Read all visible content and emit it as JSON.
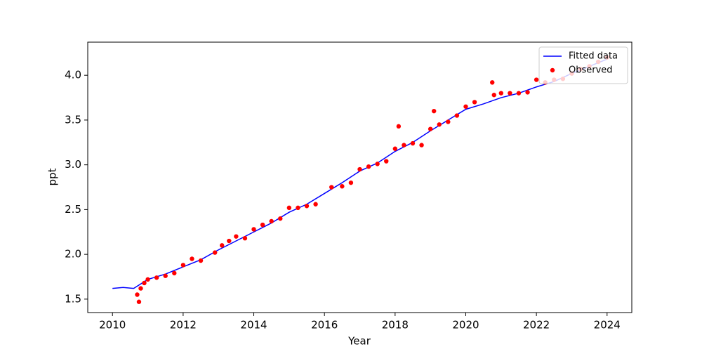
{
  "chart_data": {
    "type": "scatter",
    "xlabel": "Year",
    "ylabel": "ppt",
    "xlim": [
      2009.3,
      2024.7
    ],
    "ylim": [
      1.35,
      4.37
    ],
    "xticks": [
      2010,
      2012,
      2014,
      2016,
      2018,
      2020,
      2022,
      2024
    ],
    "yticks": [
      1.5,
      {
        "value": 2,
        "label": "2.0"
      },
      2.5,
      {
        "value": 3,
        "label": "3.0"
      },
      3.5,
      {
        "value": 4,
        "label": "4.0"
      }
    ],
    "legend": "upper right",
    "series": [
      {
        "name": "Fitted data",
        "style": "line",
        "color": "#0000ff",
        "x": [
          2010,
          2010.3,
          2010.6,
          2011,
          2011.5,
          2012,
          2012.5,
          2013,
          2013.5,
          2014,
          2014.5,
          2015,
          2015.5,
          2016,
          2016.5,
          2017,
          2017.5,
          2018,
          2018.5,
          2019,
          2019.5,
          2020,
          2020.5,
          2021,
          2021.5,
          2022,
          2022.5,
          2023,
          2023.5,
          2024
        ],
        "values": [
          1.62,
          1.63,
          1.62,
          1.72,
          1.78,
          1.86,
          1.94,
          2.05,
          2.15,
          2.25,
          2.35,
          2.47,
          2.56,
          2.68,
          2.8,
          2.93,
          3.02,
          3.15,
          3.25,
          3.38,
          3.5,
          3.62,
          3.68,
          3.75,
          3.8,
          3.87,
          3.93,
          4.02,
          4.1,
          4.18
        ]
      },
      {
        "name": "Observed",
        "style": "scatter",
        "color": "#ff0000",
        "x": [
          2010.7,
          2010.75,
          2010.8,
          2010.9,
          2011,
          2011.25,
          2011.5,
          2011.75,
          2012,
          2012.25,
          2012.5,
          2012.9,
          2013.1,
          2013.3,
          2013.5,
          2013.75,
          2014,
          2014.25,
          2014.5,
          2014.75,
          2015,
          2015.25,
          2015.5,
          2015.75,
          2016.2,
          2016.5,
          2016.75,
          2017,
          2017.25,
          2017.5,
          2017.75,
          2018,
          2018.1,
          2018.25,
          2018.5,
          2018.75,
          2019,
          2019.1,
          2019.25,
          2019.5,
          2019.75,
          2020,
          2020.25,
          2020.75,
          2020.8,
          2021,
          2021.25,
          2021.5,
          2021.75,
          2022,
          2022.25,
          2022.5,
          2022.75,
          2023,
          2023.25,
          2023.5,
          2023.75,
          2024
        ],
        "values": [
          1.55,
          1.47,
          1.62,
          1.68,
          1.72,
          1.74,
          1.76,
          1.79,
          1.88,
          1.95,
          1.93,
          2.02,
          2.1,
          2.15,
          2.2,
          2.18,
          2.28,
          2.33,
          2.37,
          2.4,
          2.52,
          2.52,
          2.54,
          2.56,
          2.75,
          2.76,
          2.8,
          2.95,
          2.98,
          3.01,
          3.04,
          3.18,
          3.43,
          3.22,
          3.24,
          3.22,
          3.4,
          3.6,
          3.45,
          3.48,
          3.55,
          3.65,
          3.7,
          3.92,
          3.78,
          3.8,
          3.8,
          3.8,
          3.81,
          3.95,
          3.92,
          3.95,
          3.96,
          4.02,
          4.07,
          4.1,
          4.15,
          4.2
        ]
      }
    ]
  }
}
